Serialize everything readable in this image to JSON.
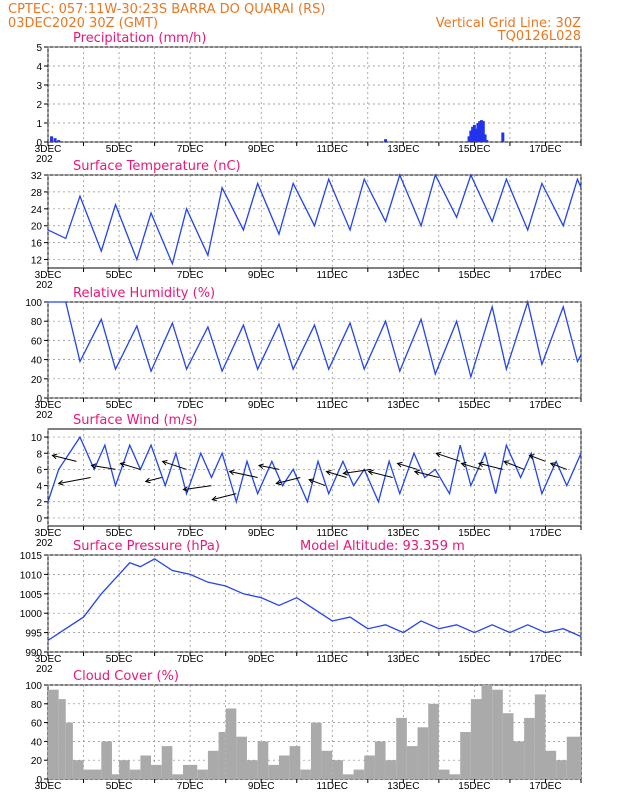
{
  "header": {
    "line1_left": "CPTEC:  057:11W-30:23S  BARRA DO QUARAI (RS)",
    "line2_left": "03DEC2020 30Z (GMT)",
    "line2_right": "Vertical Grid Line: 30Z",
    "line3_right": "TQ0126L028"
  },
  "colors": {
    "header": "#e87722",
    "title": "#e8177a",
    "line": "#2244ee",
    "bar": "#2233ee",
    "cloud": "#aaaaaa"
  },
  "x_axis": {
    "range_days": [
      3,
      18
    ],
    "tick_labels": [
      "3DEC",
      "5DEC",
      "7DEC",
      "9DEC",
      "11DEC",
      "13DEC",
      "15DEC",
      "17DEC"
    ],
    "tick_days": [
      3,
      5,
      7,
      9,
      11,
      13,
      15,
      17
    ],
    "year_fragment": "202"
  },
  "chart_data": [
    {
      "type": "bar",
      "title": "Precipitation (mm/h)",
      "ylim": [
        0,
        5
      ],
      "yticks": [
        0,
        1,
        2,
        3,
        4,
        5
      ],
      "x": [
        3.1,
        3.2,
        3.3,
        12.5,
        14.85,
        14.9,
        14.95,
        15.0,
        15.05,
        15.1,
        15.15,
        15.2,
        15.25,
        15.3,
        15.35,
        15.8
      ],
      "values": [
        0.3,
        0.2,
        0.1,
        0.15,
        0.3,
        0.6,
        0.8,
        0.9,
        0.7,
        1.0,
        1.1,
        1.15,
        1.1,
        0.4,
        0.1,
        0.5
      ]
    },
    {
      "type": "line",
      "title": "Surface Temperature (nC)",
      "ylim": [
        10,
        32
      ],
      "yticks": [
        12,
        16,
        20,
        24,
        28,
        32
      ],
      "x": [
        3.0,
        3.5,
        3.9,
        4.5,
        4.9,
        5.5,
        5.9,
        6.5,
        6.9,
        7.5,
        7.9,
        8.5,
        8.9,
        9.5,
        9.9,
        10.5,
        10.9,
        11.5,
        11.9,
        12.5,
        12.9,
        13.5,
        13.9,
        14.5,
        14.9,
        15.5,
        15.9,
        16.5,
        16.9,
        17.5,
        17.9,
        18.0
      ],
      "values": [
        19,
        17,
        27,
        14,
        25,
        12,
        23,
        11,
        24,
        13,
        29,
        19,
        30,
        18,
        30,
        20,
        31,
        19,
        31,
        21,
        32,
        20,
        32,
        22,
        32,
        21,
        31,
        19,
        30,
        20,
        31,
        29
      ]
    },
    {
      "type": "line",
      "title": "Relative Humidity (%)",
      "ylim": [
        0,
        100
      ],
      "yticks": [
        0,
        20,
        40,
        60,
        80,
        100
      ],
      "x": [
        3.0,
        3.5,
        3.9,
        4.5,
        4.9,
        5.5,
        5.9,
        6.5,
        6.9,
        7.5,
        7.9,
        8.5,
        8.9,
        9.5,
        9.9,
        10.5,
        10.9,
        11.5,
        11.9,
        12.5,
        12.9,
        13.5,
        13.9,
        14.5,
        14.9,
        15.5,
        15.9,
        16.5,
        16.9,
        17.5,
        17.9,
        18.0
      ],
      "values": [
        100,
        100,
        38,
        82,
        30,
        75,
        28,
        78,
        30,
        74,
        28,
        76,
        30,
        77,
        30,
        76,
        30,
        78,
        30,
        80,
        28,
        82,
        25,
        80,
        22,
        95,
        30,
        100,
        35,
        95,
        38,
        45
      ]
    },
    {
      "type": "line",
      "title": "Surface Wind (m/s)",
      "ylim": [
        -1,
        11
      ],
      "yticks": [
        0,
        2,
        4,
        6,
        8,
        10
      ],
      "x": [
        3.0,
        3.3,
        3.6,
        3.9,
        4.3,
        4.6,
        4.9,
        5.3,
        5.6,
        5.9,
        6.3,
        6.6,
        6.9,
        7.3,
        7.6,
        7.9,
        8.3,
        8.6,
        8.9,
        9.3,
        9.6,
        9.9,
        10.3,
        10.6,
        10.9,
        11.3,
        11.6,
        11.9,
        12.3,
        12.6,
        12.9,
        13.3,
        13.6,
        13.9,
        14.3,
        14.6,
        14.9,
        15.3,
        15.6,
        15.9,
        16.3,
        16.6,
        16.9,
        17.3,
        17.6,
        17.9,
        18.0
      ],
      "values": [
        2,
        6,
        8,
        10,
        6,
        9,
        4,
        9,
        6,
        9,
        4,
        8,
        3,
        8,
        5,
        8,
        2,
        7,
        3,
        7,
        4,
        6,
        2,
        7,
        3,
        7,
        4,
        6,
        2,
        7,
        3,
        8,
        5,
        6,
        3,
        9,
        4,
        8,
        3,
        9,
        5,
        8,
        3,
        7,
        4,
        7,
        8
      ],
      "arrows": {
        "x": [
          3.8,
          4.2,
          4.9,
          5.6,
          6.2,
          6.9,
          7.6,
          8.3,
          8.9,
          9.5,
          10.1,
          10.8,
          11.4,
          12.1,
          12.7,
          13.4,
          14.0,
          14.6,
          15.2,
          15.8,
          16.4,
          17.0,
          17.6
        ],
        "y": [
          7,
          5,
          6,
          6,
          5,
          6,
          4,
          3,
          5,
          6,
          5,
          4,
          5,
          6,
          5,
          6,
          5,
          7,
          6,
          6,
          6,
          7,
          6
        ],
        "u": [
          -6,
          -8,
          -6,
          -5,
          -4,
          -6,
          -7,
          -6,
          -7,
          -5,
          -6,
          -4,
          -5,
          -7,
          -6,
          -5,
          -6,
          -6,
          -5,
          -6,
          -5,
          -4,
          -4
        ],
        "v": [
          3,
          -3,
          2,
          3,
          -2,
          4,
          -2,
          -3,
          3,
          2,
          -3,
          3,
          3,
          -2,
          3,
          3,
          3,
          4,
          3,
          3,
          4,
          3,
          3
        ]
      }
    },
    {
      "type": "line",
      "title": "Surface Pressure (hPa)",
      "annotation": "Model Altitude: 93.359  m",
      "ylim": [
        990,
        1015
      ],
      "yticks": [
        990,
        995,
        1000,
        1005,
        1010,
        1015
      ],
      "x": [
        3.0,
        3.5,
        4.0,
        4.5,
        5.0,
        5.3,
        5.6,
        6.0,
        6.5,
        7.0,
        7.5,
        8.0,
        8.5,
        9.0,
        9.5,
        10.0,
        10.5,
        11.0,
        11.5,
        12.0,
        12.5,
        13.0,
        13.5,
        14.0,
        14.5,
        15.0,
        15.5,
        16.0,
        16.5,
        17.0,
        17.5,
        18.0
      ],
      "values": [
        993,
        996,
        999,
        1005,
        1010,
        1013,
        1012,
        1014,
        1011,
        1010,
        1008,
        1007,
        1005,
        1004,
        1002,
        1004,
        1001,
        998,
        999,
        996,
        997,
        995,
        998,
        996,
        997,
        995,
        997,
        995,
        997,
        995,
        996,
        994
      ]
    },
    {
      "type": "area",
      "title": "Cloud Cover (%)",
      "ylim": [
        0,
        100
      ],
      "yticks": [
        0,
        20,
        40,
        60,
        80,
        100
      ],
      "x": [
        3.0,
        3.3,
        3.5,
        3.7,
        4.0,
        4.5,
        4.8,
        5.0,
        5.3,
        5.6,
        5.9,
        6.2,
        6.5,
        6.8,
        7.2,
        7.5,
        7.8,
        8.0,
        8.3,
        8.6,
        8.9,
        9.2,
        9.5,
        9.8,
        10.1,
        10.4,
        10.7,
        11.0,
        11.3,
        11.6,
        11.9,
        12.2,
        12.5,
        12.8,
        13.1,
        13.4,
        13.7,
        14.0,
        14.3,
        14.6,
        14.9,
        15.2,
        15.5,
        15.8,
        16.1,
        16.4,
        16.7,
        17.0,
        17.3,
        17.6,
        18.0
      ],
      "values": [
        95,
        85,
        60,
        20,
        10,
        40,
        5,
        20,
        10,
        25,
        15,
        35,
        5,
        15,
        10,
        30,
        50,
        75,
        45,
        20,
        40,
        15,
        25,
        35,
        10,
        60,
        30,
        20,
        5,
        10,
        25,
        40,
        20,
        65,
        35,
        55,
        80,
        10,
        5,
        50,
        85,
        100,
        95,
        70,
        40,
        65,
        90,
        30,
        20,
        45,
        25
      ]
    }
  ]
}
